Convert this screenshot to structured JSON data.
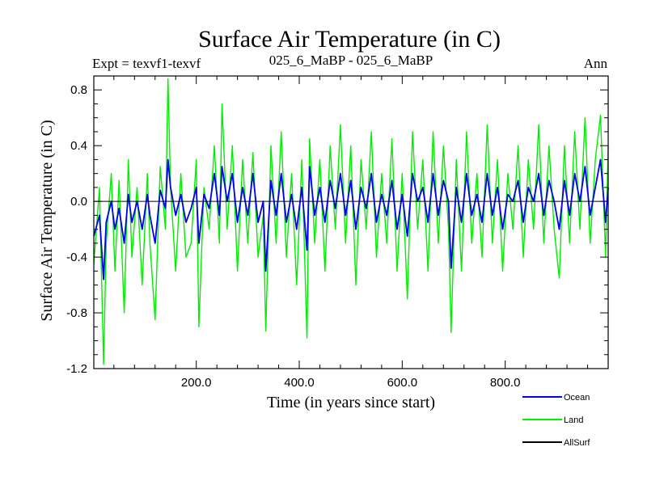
{
  "chart_data": {
    "type": "line",
    "title": "Surface Air Temperature (in C)",
    "subtitle_left": "Expt = texvf1-texvf",
    "subtitle_center": "025_6_MaBP - 025_6_MaBP",
    "subtitle_right": "Ann",
    "xlabel": "Time (in years since start)",
    "ylabel": "Surface Air Temperature (in C)",
    "xlim": [
      1,
      1000
    ],
    "ylim": [
      -1.2,
      0.9
    ],
    "xticks": [
      200,
      400,
      600,
      800
    ],
    "xtick_labels": [
      "200.0",
      "400.0",
      "600.0",
      "800.0"
    ],
    "yticks": [
      -1.2,
      -0.8,
      -0.4,
      0.0,
      0.4,
      0.8
    ],
    "ytick_labels": [
      "-1.2",
      "-0.8",
      "-0.4",
      "0.0",
      "0.4",
      "0.8"
    ],
    "zero_line": 0.0,
    "legend_position": "bottom-right",
    "series": [
      {
        "name": "Land",
        "color": "#00ee00",
        "x": [
          1,
          12,
          20,
          25,
          35,
          42,
          50,
          60,
          68,
          75,
          85,
          95,
          105,
          110,
          120,
          130,
          140,
          145,
          150,
          160,
          170,
          180,
          190,
          200,
          205,
          215,
          225,
          235,
          245,
          250,
          260,
          270,
          280,
          290,
          300,
          310,
          320,
          330,
          335,
          345,
          355,
          365,
          375,
          385,
          395,
          405,
          415,
          420,
          430,
          440,
          450,
          460,
          470,
          480,
          490,
          500,
          510,
          520,
          530,
          540,
          550,
          560,
          570,
          580,
          590,
          600,
          610,
          620,
          630,
          640,
          650,
          660,
          670,
          680,
          690,
          695,
          705,
          715,
          725,
          735,
          745,
          755,
          765,
          775,
          785,
          795,
          805,
          815,
          825,
          835,
          845,
          855,
          865,
          875,
          885,
          895,
          905,
          915,
          925,
          935,
          945,
          955,
          965,
          975,
          985,
          995,
          1000
        ],
        "values": [
          -0.45,
          0.1,
          -1.17,
          -0.3,
          0.2,
          -0.5,
          0.15,
          -0.8,
          0.3,
          -0.4,
          0.1,
          -0.6,
          0.2,
          -0.3,
          -0.85,
          0.25,
          -0.2,
          0.88,
          0.1,
          -0.5,
          0.2,
          -0.4,
          -0.3,
          0.3,
          -0.9,
          0.1,
          -0.2,
          0.4,
          -0.3,
          0.7,
          -0.2,
          0.4,
          -0.5,
          0.3,
          -0.3,
          0.35,
          -0.4,
          -0.1,
          -0.93,
          0.4,
          -0.3,
          0.5,
          -0.4,
          0.2,
          -0.6,
          0.3,
          -0.98,
          0.45,
          -0.3,
          0.3,
          -0.5,
          0.4,
          -0.2,
          0.55,
          -0.3,
          0.4,
          -0.6,
          0.3,
          -0.2,
          0.5,
          -0.4,
          0.2,
          -0.3,
          0.45,
          -0.5,
          0.2,
          -0.7,
          0.5,
          -0.2,
          0.3,
          -0.5,
          0.5,
          -0.3,
          0.4,
          -0.2,
          -0.94,
          0.3,
          -0.5,
          0.5,
          -0.3,
          0.2,
          -0.4,
          0.55,
          -0.3,
          0.3,
          -0.5,
          0.2,
          -0.2,
          0.4,
          -0.4,
          0.3,
          -0.2,
          0.55,
          -0.3,
          0.4,
          -0.2,
          -0.55,
          0.4,
          -0.3,
          0.5,
          -0.2,
          0.6,
          -0.3,
          0.3,
          0.62,
          -0.4,
          0.4
        ]
      },
      {
        "name": "Ocean",
        "color": "#0000ee",
        "x": [
          1,
          12,
          20,
          25,
          35,
          42,
          50,
          60,
          68,
          75,
          85,
          95,
          105,
          110,
          120,
          130,
          140,
          145,
          150,
          160,
          170,
          180,
          190,
          200,
          205,
          215,
          225,
          235,
          245,
          250,
          260,
          270,
          280,
          290,
          300,
          310,
          320,
          330,
          335,
          345,
          355,
          365,
          375,
          385,
          395,
          405,
          415,
          420,
          430,
          440,
          450,
          460,
          470,
          480,
          490,
          500,
          510,
          520,
          530,
          540,
          550,
          560,
          570,
          580,
          590,
          600,
          610,
          620,
          630,
          640,
          650,
          660,
          670,
          680,
          690,
          695,
          705,
          715,
          725,
          735,
          745,
          755,
          765,
          775,
          785,
          795,
          805,
          815,
          825,
          835,
          845,
          855,
          865,
          875,
          885,
          895,
          905,
          915,
          925,
          935,
          945,
          955,
          965,
          975,
          985,
          995,
          1000
        ],
        "values": [
          -0.25,
          -0.1,
          -0.56,
          -0.15,
          0.0,
          -0.2,
          -0.05,
          -0.3,
          0.05,
          -0.15,
          0.0,
          -0.2,
          0.05,
          -0.1,
          -0.3,
          0.08,
          -0.05,
          0.3,
          0.1,
          -0.1,
          0.05,
          -0.15,
          -0.05,
          0.1,
          -0.3,
          0.05,
          -0.05,
          0.2,
          -0.1,
          0.25,
          0.0,
          0.2,
          -0.15,
          0.1,
          -0.1,
          0.2,
          -0.15,
          0.0,
          -0.5,
          0.15,
          -0.1,
          0.2,
          -0.15,
          0.05,
          -0.2,
          0.1,
          -0.35,
          0.25,
          -0.1,
          0.1,
          -0.15,
          0.15,
          -0.05,
          0.2,
          -0.1,
          0.15,
          -0.2,
          0.1,
          -0.05,
          0.2,
          -0.15,
          0.05,
          -0.1,
          0.15,
          -0.2,
          0.05,
          -0.25,
          0.2,
          0.0,
          0.1,
          -0.15,
          0.2,
          -0.1,
          0.15,
          0.0,
          -0.48,
          0.1,
          -0.15,
          0.2,
          -0.1,
          0.05,
          -0.15,
          0.2,
          -0.1,
          0.1,
          -0.2,
          0.05,
          0.0,
          0.15,
          -0.15,
          0.1,
          0.0,
          0.2,
          -0.1,
          0.15,
          0.0,
          -0.2,
          0.15,
          -0.1,
          0.2,
          0.0,
          0.25,
          -0.1,
          0.1,
          0.3,
          -0.15,
          0.1
        ]
      },
      {
        "name": "AllSurf",
        "color": "#000000",
        "x": [],
        "values": []
      }
    ]
  }
}
